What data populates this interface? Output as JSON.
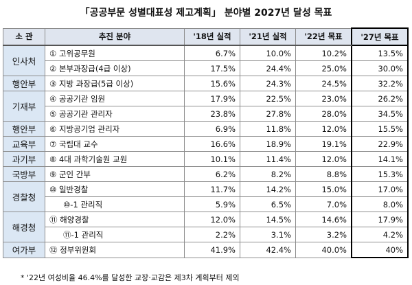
{
  "title": "「공공부문 성별대표성 제고계획」 분야별 2027년 달성 목표",
  "table": {
    "header": [
      "소 관",
      "추진 분야",
      "'18년 실적",
      "'21년 실적",
      "'22년 목표",
      "'27년 목표"
    ],
    "groups": [
      {
        "agency": "인사처",
        "items": [
          {
            "field": "① 고위공무원",
            "values": [
              "6.7%",
              "10.0%",
              "10.2%",
              "13.5%"
            ]
          },
          {
            "field": "② 본부과장급(4급 이상)",
            "values": [
              "17.5%",
              "24.4%",
              "25.0%",
              "30.0%"
            ]
          }
        ]
      },
      {
        "agency": "행안부",
        "items": [
          {
            "field": "③ 지방 과장급(5급 이상)",
            "values": [
              "15.6%",
              "24.3%",
              "24.5%",
              "32.2%"
            ]
          }
        ]
      },
      {
        "agency": "기재부",
        "items": [
          {
            "field": "④ 공공기관 임원",
            "values": [
              "17.9%",
              "22.5%",
              "23.0%",
              "26.2%"
            ]
          },
          {
            "field": "⑤ 공공기관 관리자",
            "values": [
              "23.8%",
              "27.8%",
              "28.0%",
              "34.5%"
            ]
          }
        ]
      },
      {
        "agency": "행안부",
        "items": [
          {
            "field": "⑥ 지방공기업 관리자",
            "values": [
              "6.9%",
              "11.8%",
              "12.0%",
              "15.5%"
            ]
          }
        ]
      },
      {
        "agency": "교육부",
        "items": [
          {
            "field": "⑦ 국립대 교수",
            "values": [
              "16.6%",
              "18.9%",
              "19.1%",
              "22.9%"
            ]
          }
        ]
      },
      {
        "agency": "과기부",
        "items": [
          {
            "field": "⑧ 4대 과학기술원 교원",
            "values": [
              "10.1%",
              "11.4%",
              "12.0%",
              "14.1%"
            ]
          }
        ]
      },
      {
        "agency": "국방부",
        "items": [
          {
            "field": "⑨ 군인 간부",
            "values": [
              "6.2%",
              "8.2%",
              "8.8%",
              "15.3%"
            ]
          }
        ]
      },
      {
        "agency": "경찰청",
        "items": [
          {
            "field": "⑩ 일반경찰",
            "values": [
              "11.7%",
              "14.2%",
              "15.0%",
              "17.0%"
            ]
          },
          {
            "field": "⑩-1 관리직",
            "sub": true,
            "values": [
              "5.9%",
              "6.5%",
              "7.0%",
              "8.0%"
            ]
          }
        ]
      },
      {
        "agency": "해경청",
        "items": [
          {
            "field": "⑪ 해양경찰",
            "values": [
              "12.0%",
              "14.5%",
              "14.6%",
              "17.9%"
            ]
          },
          {
            "field": "⑪-1 관리직",
            "sub": true,
            "values": [
              "2.2%",
              "3.1%",
              "3.2%",
              "4.2%"
            ]
          }
        ]
      },
      {
        "agency": "여가부",
        "items": [
          {
            "field": "⑫ 정부위원회",
            "values": [
              "41.9%",
              "42.4%",
              "40.0%",
              "40%"
            ]
          }
        ]
      }
    ]
  },
  "footnote": "* '22년 여성비율 46.4%를 달성한 교장·교감은 제3차 계획부터 제외"
}
